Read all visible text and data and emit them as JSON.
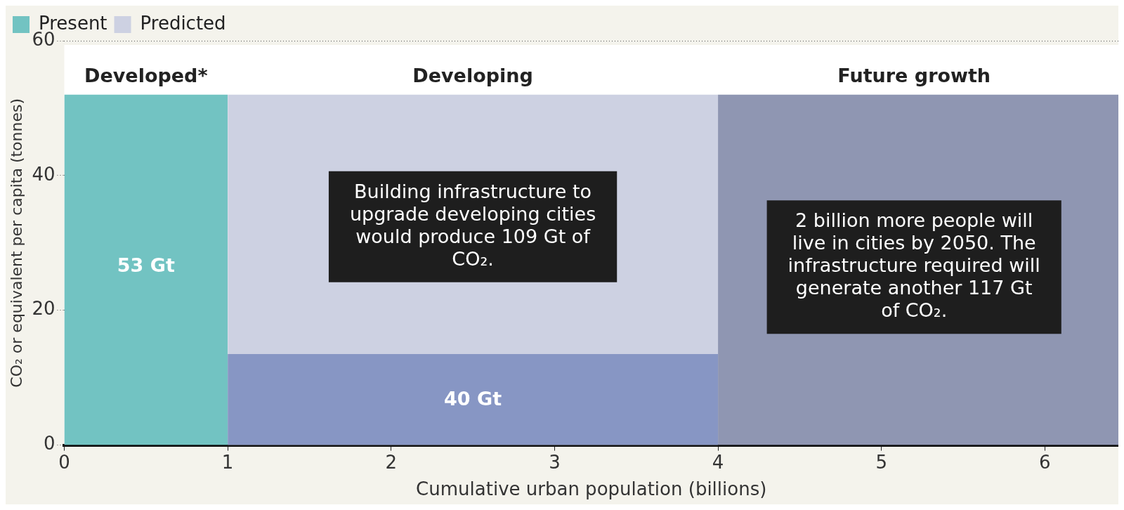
{
  "chart_data": {
    "type": "area",
    "xlabel": "Cumulative urban population (billions)",
    "ylabel": "CO₂ or equivalent per capita (tonnes)",
    "series": [
      {
        "name": "Present",
        "color": "#72c3c2",
        "x": [
          0,
          1
        ],
        "values": [
          52,
          52
        ]
      },
      {
        "name": "Predicted",
        "color": "#cdd1e2",
        "x": [
          1,
          4
        ],
        "values": [
          52,
          52
        ]
      },
      {
        "color": "#8796c4",
        "x": [
          1,
          4
        ],
        "values": [
          13.5,
          13.5
        ]
      },
      {
        "color": "#8f96b2",
        "x": [
          4,
          6.45
        ],
        "values": [
          52,
          52
        ]
      }
    ],
    "xlim": [
      0,
      6.45
    ],
    "xticks": [
      0,
      1,
      2,
      3,
      4,
      5,
      6
    ],
    "ylim": [
      0,
      60
    ],
    "yticks": [
      0,
      20,
      40,
      60
    ],
    "grid": "y",
    "line_style": "dotted",
    "legend": "top left",
    "annotations": [
      "Developed*",
      "Developing",
      "Future growth",
      "53 Gt",
      "40 Gt",
      "Building infrastructure to upgrade developing cities would produce 109 Gt of CO₂.",
      "2 billion more people will live in cities by 2050. The infrastructure required will generate another 117 Gt of CO₂."
    ]
  }
}
